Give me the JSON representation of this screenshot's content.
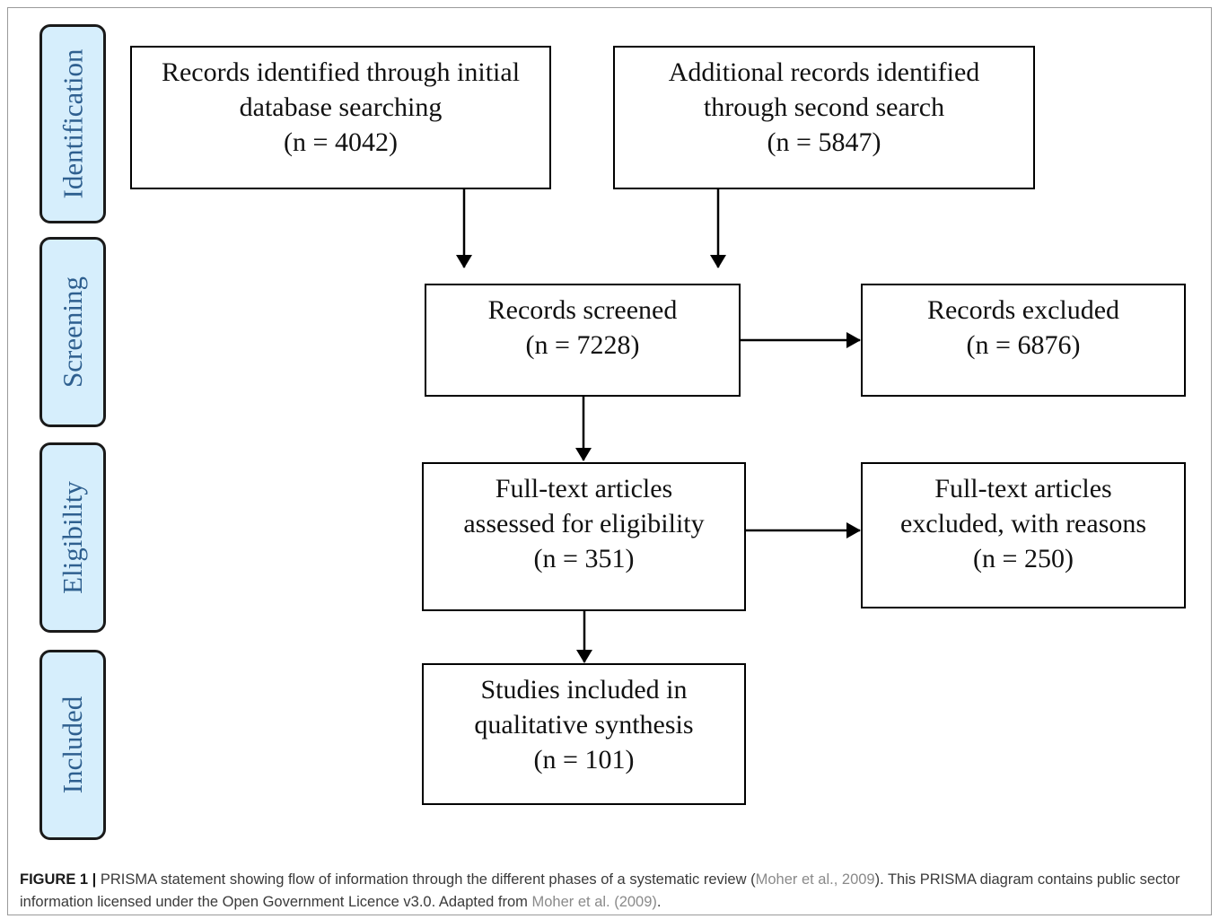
{
  "phases": {
    "identification": "Identification",
    "screening": "Screening",
    "eligibility": "Eligibility",
    "included": "Included"
  },
  "boxes": {
    "initial_search": {
      "lines": [
        "Records identified through initial",
        "database searching",
        "(n = 4042)"
      ]
    },
    "second_search": {
      "lines": [
        "Additional records identified",
        "through second search",
        "(n = 5847)"
      ]
    },
    "screened": {
      "lines": [
        "Records screened",
        "(n = 7228)"
      ]
    },
    "excluded": {
      "lines": [
        "Records excluded",
        "(n = 6876)"
      ]
    },
    "fulltext": {
      "lines": [
        "Full-text articles",
        "assessed for eligibility",
        "(n = 351)"
      ]
    },
    "fulltext_excluded": {
      "lines": [
        "Full-text articles",
        "excluded, with reasons",
        "(n = 250)"
      ]
    },
    "included": {
      "lines": [
        "Studies included in",
        "qualitative synthesis",
        "(n = 101)"
      ]
    }
  },
  "caption": {
    "label": "FIGURE 1 |",
    "text_1": " PRISMA statement showing flow of information through the different phases of a systematic review (",
    "ref_1": "Moher et al., 2009",
    "text_2": "). This PRISMA diagram contains public sector information licensed under the Open Government Licence v3.0. Adapted from ",
    "ref_2": "Moher et al. (2009)",
    "text_3": "."
  },
  "colors": {
    "phase_fill": "#d6eefc",
    "phase_text": "#2e5f8f",
    "box_border": "#000000",
    "caption_link": "#8a8a8a"
  }
}
